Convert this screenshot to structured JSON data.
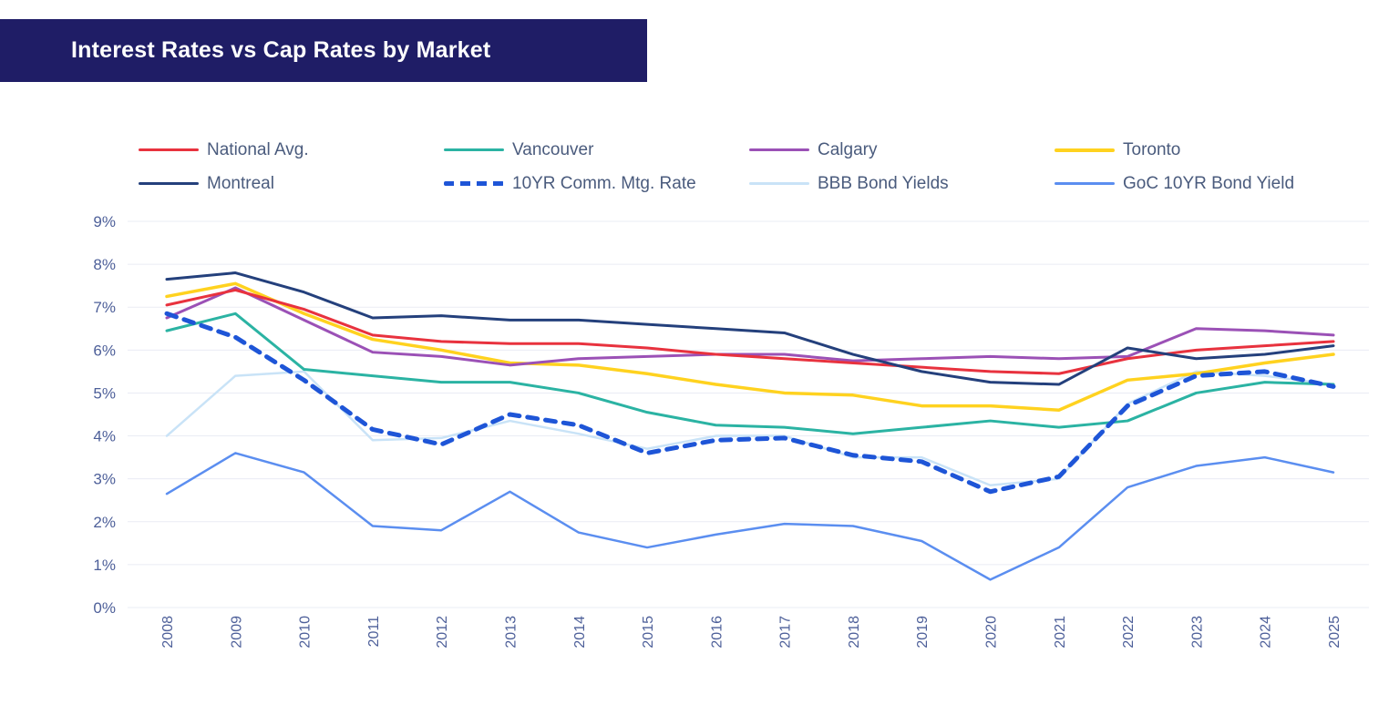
{
  "header": {
    "title": "Interest Rates vs Cap Rates by Market"
  },
  "colors": {
    "title_bar_bg": "#1f1d66",
    "title_text": "#ffffff",
    "background": "#ffffff",
    "grid": "#eaecf4",
    "axis_text": "#4d5f99",
    "legend_text": "#4a5b7d"
  },
  "chart_data": {
    "type": "line",
    "x": [
      2008,
      2009,
      2010,
      2011,
      2012,
      2013,
      2014,
      2015,
      2016,
      2017,
      2018,
      2019,
      2020,
      2021,
      2022,
      2023,
      2024,
      2025
    ],
    "ylim": [
      0,
      9
    ],
    "yticks": [
      "0%",
      "1%",
      "2%",
      "3%",
      "4%",
      "5%",
      "6%",
      "7%",
      "8%",
      "9%"
    ],
    "grid": "horizontal",
    "legend_position": "top",
    "series": [
      {
        "name": "National Avg.",
        "color": "#e8323e",
        "line_style": "solid",
        "width": 3,
        "values": [
          7.05,
          7.4,
          6.95,
          6.35,
          6.2,
          6.15,
          6.15,
          6.05,
          5.9,
          5.8,
          5.7,
          5.6,
          5.5,
          5.45,
          5.8,
          6.0,
          6.1,
          6.2
        ]
      },
      {
        "name": "Vancouver",
        "color": "#2bb3a3",
        "line_style": "solid",
        "width": 3,
        "values": [
          6.45,
          6.85,
          5.55,
          5.4,
          5.25,
          5.25,
          5.0,
          4.55,
          4.25,
          4.2,
          4.05,
          4.2,
          4.35,
          4.2,
          4.35,
          5.0,
          5.25,
          5.2
        ]
      },
      {
        "name": "Calgary",
        "color": "#9b51b6",
        "line_style": "solid",
        "width": 3,
        "values": [
          6.75,
          7.45,
          6.7,
          5.95,
          5.85,
          5.65,
          5.8,
          5.85,
          5.9,
          5.9,
          5.75,
          5.8,
          5.85,
          5.8,
          5.85,
          6.5,
          6.45,
          6.35
        ]
      },
      {
        "name": "Toronto",
        "color": "#ffd21f",
        "line_style": "solid",
        "width": 3.5,
        "values": [
          7.25,
          7.55,
          6.85,
          6.25,
          6.0,
          5.7,
          5.65,
          5.45,
          5.2,
          5.0,
          4.95,
          4.7,
          4.7,
          4.6,
          5.3,
          5.45,
          5.7,
          5.9
        ]
      },
      {
        "name": "Montreal",
        "color": "#24407c",
        "line_style": "solid",
        "width": 3,
        "values": [
          7.65,
          7.8,
          7.35,
          6.75,
          6.8,
          6.7,
          6.7,
          6.6,
          6.5,
          6.4,
          5.9,
          5.5,
          5.25,
          5.2,
          6.05,
          5.8,
          5.9,
          6.1
        ]
      },
      {
        "name": "10YR Comm. Mtg. Rate",
        "color": "#1e55d7",
        "line_style": "dashed",
        "width": 5,
        "values": [
          6.85,
          6.3,
          5.3,
          4.15,
          3.8,
          4.5,
          4.25,
          3.6,
          3.9,
          3.95,
          3.55,
          3.4,
          2.7,
          3.05,
          4.7,
          5.4,
          5.5,
          5.15
        ]
      },
      {
        "name": "BBB Bond Yields",
        "color": "#c9e3f7",
        "line_style": "solid",
        "width": 2.5,
        "values": [
          4.0,
          5.4,
          5.5,
          3.9,
          3.95,
          4.35,
          4.05,
          3.7,
          4.0,
          4.0,
          3.5,
          3.5,
          2.85,
          3.0,
          4.75,
          5.5,
          5.4,
          5.2
        ]
      },
      {
        "name": "GoC 10YR Bond Yield",
        "color": "#5b8ef0",
        "line_style": "solid",
        "width": 2.5,
        "values": [
          2.65,
          3.6,
          3.15,
          1.9,
          1.8,
          2.7,
          1.75,
          1.4,
          1.7,
          1.95,
          1.9,
          1.55,
          0.65,
          1.4,
          2.8,
          3.3,
          3.5,
          3.15
        ]
      }
    ]
  }
}
